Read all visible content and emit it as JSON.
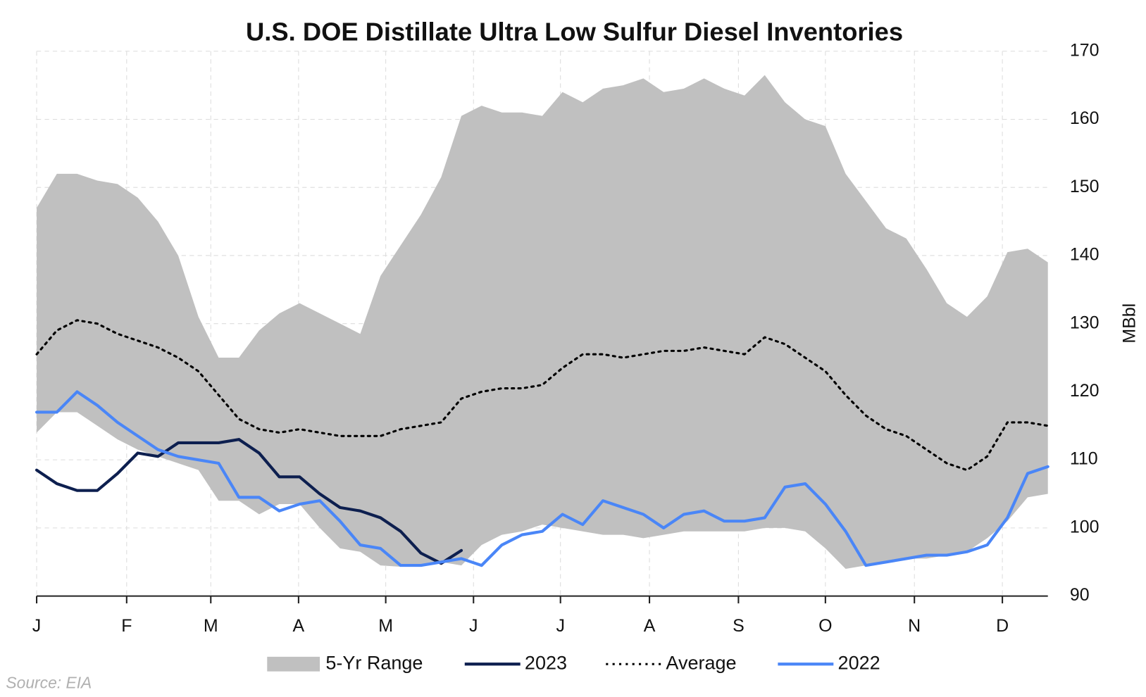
{
  "chart_data": {
    "type": "line",
    "title": "U.S. DOE Distillate Ultra Low Sulfur Diesel Inventories",
    "y_axis_label": "MBbl",
    "source": "Source: EIA",
    "x": [
      0,
      1,
      2,
      3,
      4,
      5,
      6,
      7,
      8,
      9,
      10,
      11,
      12,
      13,
      14,
      15,
      16,
      17,
      18,
      19,
      20,
      21,
      22,
      23,
      24,
      25,
      26,
      27,
      28,
      29,
      30,
      31,
      32,
      33,
      34,
      35,
      36,
      37,
      38,
      39,
      40,
      41,
      42,
      43,
      44,
      45,
      46,
      47,
      48,
      49,
      50
    ],
    "xlim": [
      0,
      50
    ],
    "xticks": [
      {
        "value": 0,
        "label": "J"
      },
      {
        "value": 4.45,
        "label": "F"
      },
      {
        "value": 8.61,
        "label": "M"
      },
      {
        "value": 12.95,
        "label": "A"
      },
      {
        "value": 17.26,
        "label": "M"
      },
      {
        "value": 21.6,
        "label": "J"
      },
      {
        "value": 25.9,
        "label": "J"
      },
      {
        "value": 30.3,
        "label": "A"
      },
      {
        "value": 34.7,
        "label": "S"
      },
      {
        "value": 39.0,
        "label": "O"
      },
      {
        "value": 43.4,
        "label": "N"
      },
      {
        "value": 47.75,
        "label": "D"
      }
    ],
    "ylim": [
      90,
      170
    ],
    "yticks": [
      90,
      100,
      110,
      120,
      130,
      140,
      150,
      160,
      170
    ],
    "grid": true,
    "legend": "bottom",
    "series": [
      {
        "name": "5-Yr Range",
        "color": "#c0c0c0",
        "style": "range",
        "high": [
          147,
          152,
          152,
          151,
          150.5,
          148.5,
          145,
          140,
          131,
          125,
          125,
          129,
          131.5,
          133,
          131.5,
          130,
          128.5,
          137,
          141.5,
          146,
          151.5,
          160.5,
          162,
          161,
          161,
          160.5,
          164,
          162.5,
          164.5,
          165,
          166,
          164,
          164.5,
          166,
          164.5,
          163.5,
          166.5,
          162.5,
          160,
          159,
          152,
          148,
          144,
          142.5,
          138,
          133,
          131,
          134,
          140.5,
          141,
          139
        ],
        "low": [
          114,
          117,
          117,
          115,
          113,
          111.5,
          110.5,
          109.5,
          108.5,
          104,
          104,
          102,
          103.5,
          103.5,
          100,
          97,
          96.5,
          94.5,
          94.3,
          94.5,
          95,
          94.5,
          97.5,
          99,
          99.5,
          100.5,
          100,
          99.5,
          99,
          99,
          98.5,
          99,
          99.5,
          99.5,
          99.5,
          99.5,
          100,
          100,
          99.5,
          97,
          94,
          94.5,
          95,
          95.5,
          95.5,
          96,
          96.5,
          98.5,
          101,
          104.5,
          105
        ]
      },
      {
        "name": "2023",
        "color": "#0d1f4f",
        "style": "solid",
        "values": [
          108.5,
          106.5,
          105.5,
          105.5,
          108,
          111,
          110.5,
          112.5,
          112.5,
          112.5,
          113,
          111,
          107.5,
          107.5,
          105,
          103,
          102.5,
          101.5,
          99.5,
          96.3,
          94.8,
          96.7,
          null,
          null,
          null,
          null,
          null,
          null,
          null,
          null,
          null,
          null,
          null,
          null,
          null,
          null,
          null,
          null,
          null,
          null,
          null,
          null,
          null,
          null,
          null,
          null,
          null,
          null,
          null,
          null,
          null
        ]
      },
      {
        "name": "Average",
        "color": "#000000",
        "style": "dotted",
        "values": [
          125.5,
          129,
          130.5,
          130,
          128.5,
          127.5,
          126.5,
          125,
          123,
          119.5,
          116,
          114.5,
          114,
          114.5,
          114,
          113.5,
          113.5,
          113.5,
          114.5,
          115,
          115.5,
          119,
          120,
          120.5,
          120.5,
          121,
          123.5,
          125.5,
          125.5,
          125,
          125.5,
          126,
          126,
          126.5,
          126,
          125.5,
          128,
          127,
          125,
          123,
          119.5,
          116.5,
          114.5,
          113.5,
          111.5,
          109.5,
          108.5,
          110.5,
          115.5,
          115.5,
          115
        ]
      },
      {
        "name": "2022",
        "color": "#4a86f7",
        "style": "solid",
        "values": [
          117,
          117,
          120,
          118,
          115.5,
          113.5,
          111.5,
          110.5,
          110,
          109.5,
          104.5,
          104.5,
          102.5,
          103.5,
          104,
          101,
          97.5,
          97,
          94.5,
          94.5,
          95,
          95.5,
          94.5,
          97.5,
          99,
          99.5,
          102,
          100.5,
          104,
          103,
          102,
          100,
          102,
          102.5,
          101,
          101,
          101.5,
          106,
          106.5,
          103.5,
          99.5,
          94.5,
          95,
          95.5,
          96,
          96,
          96.5,
          97.5,
          101.5,
          108,
          109
        ]
      }
    ]
  }
}
